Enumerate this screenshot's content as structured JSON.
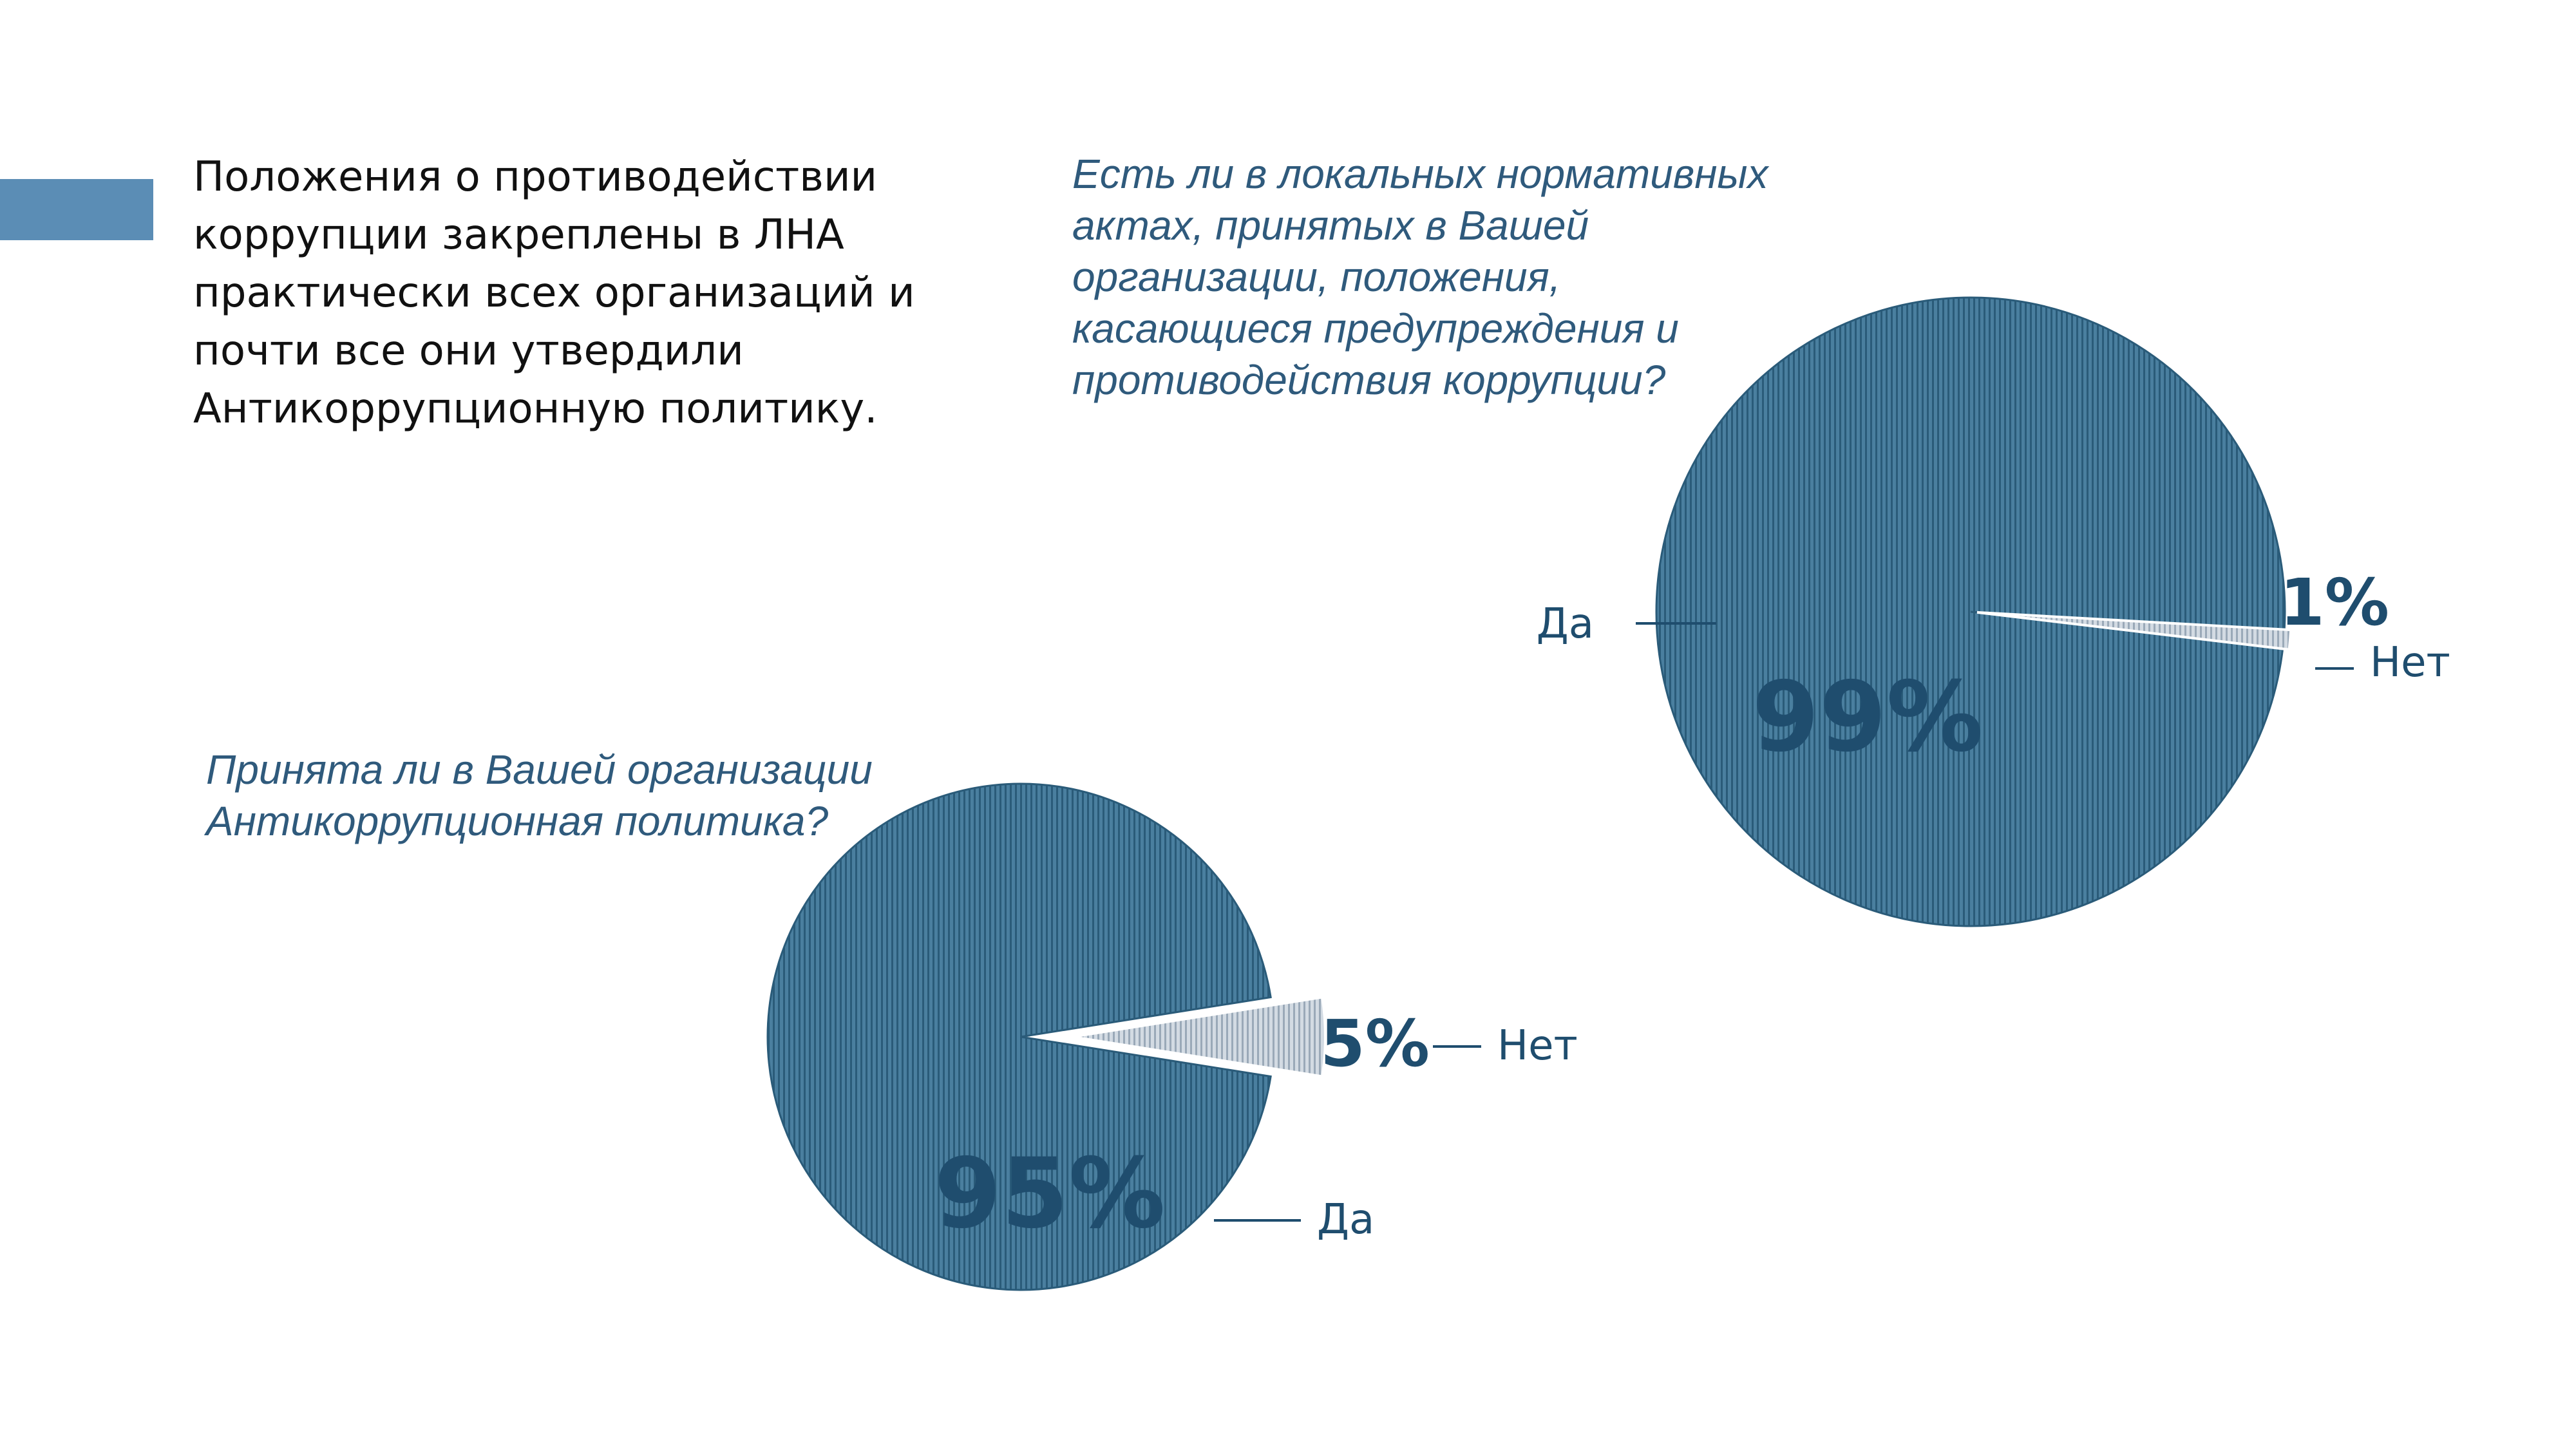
{
  "intro": {
    "text": "Положения о противодействии коррупции закреплены в ЛНА практически всех организаций и почти все они утвердили Антикоррупционную политику."
  },
  "colors": {
    "accent": "#5b8db5",
    "slice_main": "#3f7595",
    "slice_main_dark": "#255573",
    "slice_minor": "#c4ced8",
    "text_dark": "#1f4d6e"
  },
  "chart_data": [
    {
      "type": "pie",
      "title": "Есть ли в локальных нормативных актах, принятых в Вашей организации, положения, касающиеся предупреждения и противодействия коррупции?",
      "categories": [
        "Да",
        "Нет"
      ],
      "values": [
        99,
        1
      ],
      "value_labels": [
        "99%",
        "1%"
      ],
      "exploded": "Нет"
    },
    {
      "type": "pie",
      "title": "Принята ли в Вашей организации Антикоррупционная политика?",
      "categories": [
        "Да",
        "Нет"
      ],
      "values": [
        95,
        5
      ],
      "value_labels": [
        "95%",
        "5%"
      ],
      "exploded": "Нет"
    }
  ]
}
